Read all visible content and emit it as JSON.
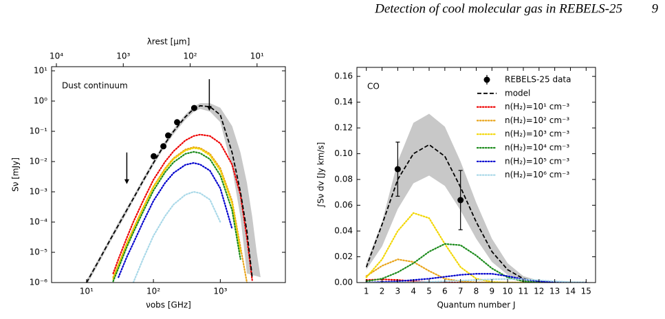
{
  "header": {
    "title": "Detection of cool molecular gas in REBELS-25",
    "page": "9"
  },
  "chart_data": [
    {
      "type": "line",
      "annotation": "Dust continuum",
      "xlabel": "νobs [GHz]",
      "ylabel": "Sν [mJy]",
      "x2label": "λrest [μm]",
      "xscale": "log",
      "yscale": "log",
      "x2scale": "log",
      "xlim": [
        3,
        9400
      ],
      "ylim": [
        1e-06,
        13.7
      ],
      "x2lim": [
        11800,
        3.77
      ],
      "xticks": [
        {
          "value": 10,
          "label": "10¹"
        },
        {
          "value": 100,
          "label": "10²"
        },
        {
          "value": 1000,
          "label": "10³"
        }
      ],
      "x2ticks": [
        {
          "value": 10000,
          "label": "10⁴"
        },
        {
          "value": 1000,
          "label": "10³"
        },
        {
          "value": 100,
          "label": "10²"
        },
        {
          "value": 10,
          "label": "10¹"
        }
      ],
      "yticks": [
        {
          "value": 1e-06,
          "label": "10⁻⁶"
        },
        {
          "value": 1e-05,
          "label": "10⁻⁵"
        },
        {
          "value": 0.0001,
          "label": "10⁻⁴"
        },
        {
          "value": 0.001,
          "label": "10⁻³"
        },
        {
          "value": 0.01,
          "label": "10⁻²"
        },
        {
          "value": 0.1,
          "label": "10⁻¹"
        },
        {
          "value": 1,
          "label": "10⁰"
        },
        {
          "value": 10,
          "label": "10¹"
        }
      ],
      "x": [
        10,
        15,
        20,
        25,
        30,
        40,
        50,
        70,
        100,
        150,
        200,
        300,
        400,
        500,
        700,
        1000,
        1500,
        2000,
        2500,
        3000,
        3500,
        4000,
        4500
      ],
      "series": [
        {
          "kind": "band",
          "color": "#c8c8c8",
          "high": [
            1.2e-06,
            6e-06,
            1.9e-05,
            4.7e-05,
            0.0001,
            0.0003,
            0.00072,
            0.0028,
            0.011,
            0.048,
            0.12,
            0.36,
            0.66,
            0.85,
            0.85,
            0.6,
            0.15,
            0.02,
            0.002,
            0.00015,
            1e-05,
            1.5e-06,
            null
          ],
          "low": [
            8e-07,
            4e-06,
            1.3e-05,
            3.2e-05,
            6.5e-05,
            0.0002,
            0.0005,
            0.0019,
            0.0075,
            0.033,
            0.08,
            0.24,
            0.44,
            0.55,
            0.45,
            0.2,
            0.006,
            0.00015,
            2e-06,
            null,
            null,
            null,
            null
          ]
        },
        {
          "kind": "line",
          "style": "dotted",
          "color": "#ee0000",
          "values": [
            null,
            null,
            null,
            2e-06,
            6e-06,
            3e-05,
            0.0001,
            0.0005,
            0.0025,
            0.01,
            0.022,
            0.05,
            0.07,
            0.078,
            0.07,
            0.04,
            0.008,
            0.0008,
            3e-05,
            1.2e-06,
            null,
            null,
            null
          ]
        },
        {
          "kind": "line",
          "style": "dotted",
          "color": "#e8a317",
          "values": [
            null,
            null,
            null,
            1.5e-06,
            4e-06,
            2e-05,
            6e-05,
            0.0003,
            0.0015,
            0.006,
            0.013,
            0.025,
            0.03,
            0.028,
            0.018,
            0.006,
            0.0005,
            1.5e-05,
            1e-06,
            null,
            null,
            null,
            null
          ]
        },
        {
          "kind": "line",
          "style": "dotted",
          "color": "#f2d600",
          "values": [
            null,
            null,
            null,
            1.3e-06,
            3.6e-06,
            1.8e-05,
            5.5e-05,
            0.00028,
            0.0014,
            0.0055,
            0.012,
            0.023,
            0.028,
            0.026,
            0.016,
            0.005,
            0.0004,
            1e-05,
            null,
            null,
            null,
            null,
            null
          ]
        },
        {
          "kind": "line",
          "style": "dotted",
          "color": "#1a8a1a",
          "values": [
            null,
            null,
            null,
            1.1e-06,
            3e-06,
            1.5e-05,
            4.5e-05,
            0.00022,
            0.0011,
            0.0045,
            0.0095,
            0.018,
            0.021,
            0.019,
            0.012,
            0.0035,
            0.00025,
            6e-06,
            null,
            null,
            null,
            null,
            null
          ]
        },
        {
          "kind": "line",
          "style": "dotted",
          "color": "#0000cd",
          "values": [
            null,
            null,
            null,
            null,
            1.5e-06,
            7e-06,
            2e-05,
            0.0001,
            0.0005,
            0.002,
            0.0042,
            0.0078,
            0.009,
            0.008,
            0.005,
            0.0013,
            6e-05,
            null,
            null,
            null,
            null,
            null,
            null
          ]
        },
        {
          "kind": "line",
          "style": "dotted",
          "color": "#a8d8e8",
          "values": [
            null,
            null,
            null,
            null,
            null,
            null,
            1e-06,
            6e-06,
            3.5e-05,
            0.00016,
            0.00038,
            0.0008,
            0.001,
            0.0009,
            0.00055,
            0.0001,
            null,
            null,
            null,
            null,
            null,
            null,
            null
          ]
        },
        {
          "kind": "line",
          "style": "dashed",
          "color": "#000000",
          "values": [
            1e-06,
            5e-06,
            1.6e-05,
            3.9e-05,
            8e-05,
            0.00025,
            0.0006,
            0.0023,
            0.009,
            0.04,
            0.1,
            0.3,
            0.55,
            0.7,
            0.65,
            0.35,
            0.02,
            0.001,
            5e-05,
            1.5e-06,
            null,
            null,
            null
          ]
        },
        {
          "kind": "points",
          "color": "#000000",
          "x": [
            101,
            141,
            166,
            226,
            407
          ],
          "values": [
            0.015,
            0.032,
            0.073,
            0.2,
            0.59
          ]
        },
        {
          "kind": "upper_limits",
          "color": "#000000",
          "x": [
            40,
            685
          ],
          "values": [
            0.02,
            5.3
          ]
        }
      ]
    },
    {
      "type": "line",
      "annotation": "CO",
      "xlabel": "Quantum number J",
      "ylabel": "∫Sν dv [Jy km/s]",
      "xlim": [
        0.4,
        15.6
      ],
      "ylim": [
        0,
        0.167
      ],
      "xticks": [
        1,
        2,
        3,
        4,
        5,
        6,
        7,
        8,
        9,
        10,
        11,
        12,
        13,
        14,
        15
      ],
      "yticks": [
        {
          "value": 0,
          "label": "0.00"
        },
        0.02,
        0.04,
        0.06,
        0.08,
        {
          "value": 0.1,
          "label": "0.10"
        },
        0.12,
        0.14,
        0.16
      ],
      "legend": "upper right",
      "x": [
        1,
        2,
        3,
        4,
        5,
        6,
        7,
        8,
        9,
        10,
        11,
        12,
        13,
        14,
        15
      ],
      "series": [
        {
          "kind": "points",
          "name": "REBELS-25 data",
          "color": "#000000",
          "x": [
            3,
            7
          ],
          "values": [
            0.088,
            0.064
          ],
          "errors": [
            0.021,
            0.023
          ]
        },
        {
          "kind": "line",
          "name": "model",
          "style": "dashed",
          "color": "#000000",
          "values": [
            0.012,
            0.045,
            0.08,
            0.1,
            0.107,
            0.098,
            0.074,
            0.047,
            0.024,
            0.01,
            0.003,
            0.001,
            0.0002,
            0,
            0
          ]
        },
        {
          "kind": "line",
          "name": "n(H₂)=10¹ cm⁻³",
          "style": "dotted",
          "color": "#ee0000",
          "values": [
            0.002,
            0.0025,
            0.002,
            0.001,
            0.0004,
            0.0001,
            0,
            0,
            0,
            0,
            0,
            0,
            0,
            0,
            0
          ]
        },
        {
          "kind": "line",
          "name": "n(H₂)=10² cm⁻³",
          "style": "dotted",
          "color": "#e8a317",
          "values": [
            0.005,
            0.013,
            0.018,
            0.016,
            0.009,
            0.003,
            0.001,
            0.0002,
            0,
            0,
            0,
            0,
            0,
            0,
            0
          ]
        },
        {
          "kind": "line",
          "name": "n(H₂)=10³ cm⁻³",
          "style": "dotted",
          "color": "#f2d600",
          "values": [
            0.004,
            0.018,
            0.04,
            0.054,
            0.05,
            0.03,
            0.012,
            0.003,
            0.0005,
            0,
            0,
            0,
            0,
            0,
            0
          ]
        },
        {
          "kind": "line",
          "name": "n(H₂)=10⁴ cm⁻³",
          "style": "dotted",
          "color": "#1a8a1a",
          "values": [
            0.001,
            0.003,
            0.008,
            0.015,
            0.024,
            0.03,
            0.029,
            0.021,
            0.011,
            0.004,
            0.001,
            0.0002,
            0,
            0,
            0
          ]
        },
        {
          "kind": "line",
          "name": "n(H₂)=10⁵ cm⁻³",
          "style": "dotted",
          "color": "#0000cd",
          "values": [
            0,
            0.0005,
            0.001,
            0.002,
            0.003,
            0.0045,
            0.006,
            0.0068,
            0.0068,
            0.005,
            0.0025,
            0.001,
            0.0003,
            0,
            0
          ]
        },
        {
          "kind": "line",
          "name": "n(H₂)=10⁶ cm⁻³",
          "style": "dotted",
          "color": "#a8d8e8",
          "values": [
            0,
            0,
            0.0001,
            0.0003,
            0.0006,
            0.001,
            0.0015,
            0.002,
            0.0025,
            0.0028,
            0.0025,
            0.0018,
            0.001,
            0.0004,
            0.0001
          ]
        },
        {
          "kind": "band",
          "color": "#c8c8c8",
          "high": [
            0.015,
            0.047,
            0.094,
            0.124,
            0.131,
            0.121,
            0.094,
            0.062,
            0.034,
            0.015,
            0.005,
            0.0015,
            0.0004,
            0.0001,
            0
          ],
          "low": [
            0.01,
            0.028,
            0.057,
            0.077,
            0.083,
            0.075,
            0.056,
            0.034,
            0.016,
            0.006,
            0.0015,
            0.0004,
            0.0001,
            0,
            0
          ]
        }
      ]
    }
  ]
}
